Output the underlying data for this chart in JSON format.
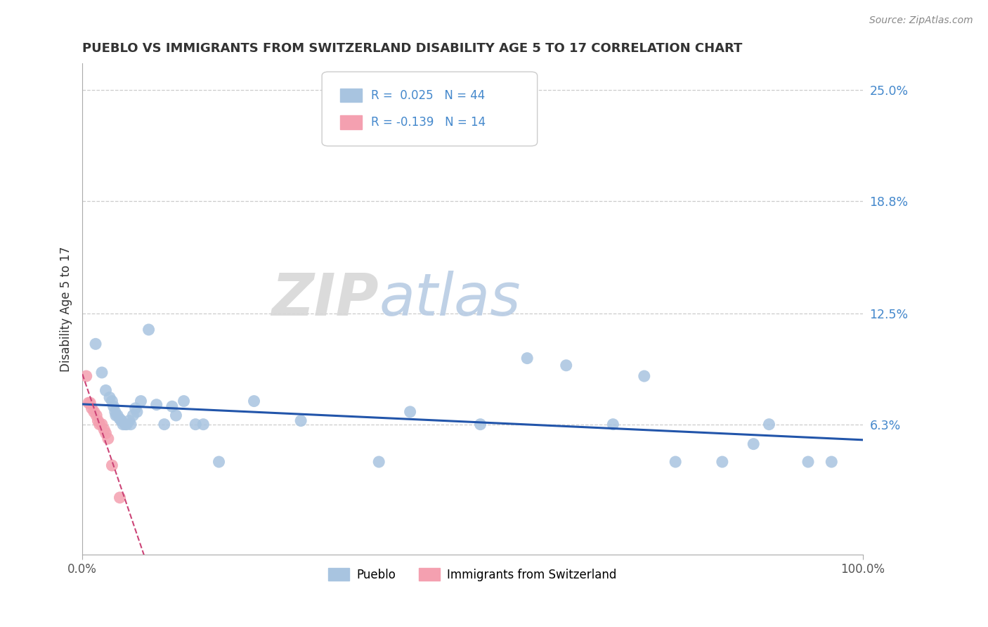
{
  "title": "PUEBLO VS IMMIGRANTS FROM SWITZERLAND DISABILITY AGE 5 TO 17 CORRELATION CHART",
  "source": "Source: ZipAtlas.com",
  "ylabel": "Disability Age 5 to 17",
  "xlim": [
    0,
    1.0
  ],
  "ylim": [
    -0.01,
    0.265
  ],
  "ytick_positions": [
    0.063,
    0.125,
    0.188,
    0.25
  ],
  "ytick_labels": [
    "6.3%",
    "12.5%",
    "18.8%",
    "25.0%"
  ],
  "xtick_positions": [
    0.0,
    1.0
  ],
  "xtick_labels": [
    "0.0%",
    "100.0%"
  ],
  "watermark_zip": "ZIP",
  "watermark_atlas": "atlas",
  "blue_color": "#a8c4e0",
  "pink_color": "#f4a0b0",
  "trend_blue": "#2255aa",
  "trend_pink": "#cc4477",
  "legend_blue_label": "R =  0.025   N = 44",
  "legend_pink_label": "R = -0.139   N = 14",
  "pueblo_x": [
    0.017,
    0.025,
    0.03,
    0.035,
    0.038,
    0.04,
    0.042,
    0.043,
    0.045,
    0.048,
    0.05,
    0.052,
    0.055,
    0.057,
    0.06,
    0.062,
    0.065,
    0.068,
    0.07,
    0.075,
    0.085,
    0.095,
    0.105,
    0.115,
    0.12,
    0.13,
    0.145,
    0.155,
    0.175,
    0.22,
    0.28,
    0.38,
    0.42,
    0.51,
    0.57,
    0.62,
    0.68,
    0.72,
    0.76,
    0.82,
    0.86,
    0.88,
    0.93,
    0.96
  ],
  "pueblo_y": [
    0.108,
    0.092,
    0.082,
    0.078,
    0.076,
    0.073,
    0.07,
    0.068,
    0.068,
    0.066,
    0.065,
    0.063,
    0.063,
    0.063,
    0.065,
    0.063,
    0.068,
    0.072,
    0.07,
    0.076,
    0.116,
    0.074,
    0.063,
    0.073,
    0.068,
    0.076,
    0.063,
    0.063,
    0.042,
    0.076,
    0.065,
    0.042,
    0.07,
    0.063,
    0.1,
    0.096,
    0.063,
    0.09,
    0.042,
    0.042,
    0.052,
    0.063,
    0.042,
    0.042
  ],
  "swiss_x": [
    0.005,
    0.008,
    0.01,
    0.012,
    0.015,
    0.018,
    0.02,
    0.022,
    0.025,
    0.028,
    0.03,
    0.033,
    0.038,
    0.048
  ],
  "swiss_y": [
    0.09,
    0.075,
    0.075,
    0.072,
    0.07,
    0.068,
    0.065,
    0.063,
    0.063,
    0.06,
    0.058,
    0.055,
    0.04,
    0.022
  ]
}
